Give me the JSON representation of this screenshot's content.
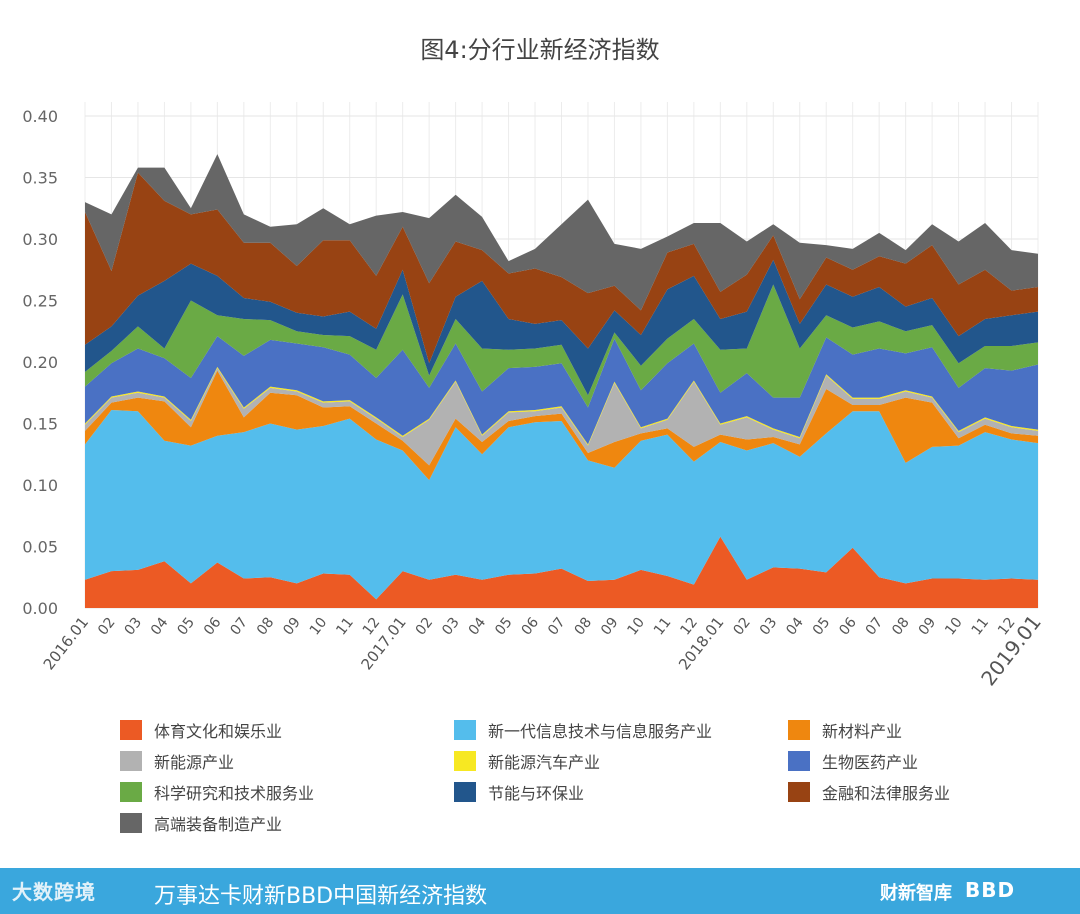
{
  "chart_data": {
    "type": "area",
    "title": "图4:分行业新经济指数",
    "xlabel": "",
    "ylabel": "",
    "ylim": [
      0,
      0.4
    ],
    "yticks": [
      "0.00",
      "0.05",
      "0.10",
      "0.15",
      "0.20",
      "0.25",
      "0.30",
      "0.35",
      "0.40"
    ],
    "grid": true,
    "legend_position": "bottom",
    "categories": [
      "2016.01",
      "02",
      "03",
      "04",
      "05",
      "06",
      "07",
      "08",
      "09",
      "10",
      "11",
      "12",
      "2017.01",
      "02",
      "03",
      "04",
      "05",
      "06",
      "07",
      "08",
      "09",
      "10",
      "11",
      "12",
      "2018.01",
      "02",
      "03",
      "04",
      "05",
      "06",
      "07",
      "08",
      "09",
      "10",
      "11",
      "12",
      "2019.01"
    ],
    "stacked_totals": [
      0.33,
      0.32,
      0.358,
      0.359,
      0.315,
      0.369,
      0.321,
      0.31,
      0.312,
      0.325,
      0.312,
      0.319,
      0.322,
      0.317,
      0.336,
      0.318,
      0.282,
      0.292,
      0.312,
      0.332,
      0.296,
      0.292,
      0.302,
      0.313,
      0.313,
      0.298,
      0.312,
      0.297,
      0.295,
      0.292,
      0.305,
      0.291,
      0.312,
      0.298,
      0.313,
      0.291,
      0.288
    ],
    "series": [
      {
        "name": "体育文化和娱乐业",
        "color": "#ec5a24",
        "values": [
          0.023,
          0.03,
          0.031,
          0.038,
          0.02,
          0.037,
          0.024,
          0.025,
          0.02,
          0.028,
          0.027,
          0.007,
          0.03,
          0.023,
          0.027,
          0.023,
          0.027,
          0.028,
          0.032,
          0.022,
          0.023,
          0.031,
          0.026,
          0.019,
          0.058,
          0.023,
          0.033,
          0.032,
          0.029,
          0.049,
          0.025,
          0.02,
          0.024,
          0.024,
          0.023,
          0.024,
          0.023
        ]
      },
      {
        "name": "新一代信息技术与信息服务产业",
        "color": "#54bdec",
        "values": [
          0.11,
          0.131,
          0.129,
          0.098,
          0.112,
          0.103,
          0.119,
          0.125,
          0.125,
          0.12,
          0.127,
          0.13,
          0.098,
          0.081,
          0.12,
          0.102,
          0.12,
          0.123,
          0.12,
          0.098,
          0.091,
          0.105,
          0.115,
          0.1,
          0.077,
          0.105,
          0.101,
          0.091,
          0.113,
          0.111,
          0.135,
          0.098,
          0.107,
          0.108,
          0.12,
          0.113,
          0.111
        ]
      },
      {
        "name": "新材料产业",
        "color": "#ef870f",
        "values": [
          0.011,
          0.006,
          0.011,
          0.032,
          0.015,
          0.053,
          0.012,
          0.025,
          0.028,
          0.015,
          0.01,
          0.013,
          0.008,
          0.012,
          0.007,
          0.01,
          0.005,
          0.005,
          0.006,
          0.006,
          0.021,
          0.006,
          0.005,
          0.012,
          0.006,
          0.009,
          0.005,
          0.01,
          0.036,
          0.005,
          0.005,
          0.053,
          0.036,
          0.006,
          0.006,
          0.005,
          0.006
        ]
      },
      {
        "name": "新能源产业",
        "color": "#b2b2b2",
        "values": [
          0.005,
          0.004,
          0.004,
          0.003,
          0.005,
          0.002,
          0.007,
          0.004,
          0.003,
          0.004,
          0.004,
          0.004,
          0.003,
          0.037,
          0.03,
          0.005,
          0.007,
          0.004,
          0.005,
          0.006,
          0.048,
          0.004,
          0.007,
          0.053,
          0.008,
          0.018,
          0.006,
          0.005,
          0.011,
          0.005,
          0.005,
          0.005,
          0.004,
          0.005,
          0.005,
          0.005,
          0.004
        ]
      },
      {
        "name": "新能源汽车产业",
        "color": "#f7e822",
        "values": [
          0.001,
          0.001,
          0.001,
          0.001,
          0.001,
          0.001,
          0.001,
          0.001,
          0.001,
          0.001,
          0.001,
          0.001,
          0.001,
          0.001,
          0.001,
          0.001,
          0.001,
          0.001,
          0.001,
          0.001,
          0.001,
          0.001,
          0.001,
          0.001,
          0.001,
          0.001,
          0.001,
          0.001,
          0.001,
          0.001,
          0.001,
          0.001,
          0.001,
          0.001,
          0.001,
          0.001,
          0.001
        ]
      },
      {
        "name": "生物医药产业",
        "color": "#4a71c4",
        "values": [
          0.03,
          0.027,
          0.035,
          0.031,
          0.034,
          0.025,
          0.042,
          0.038,
          0.038,
          0.044,
          0.037,
          0.032,
          0.07,
          0.025,
          0.03,
          0.035,
          0.035,
          0.035,
          0.035,
          0.03,
          0.035,
          0.03,
          0.045,
          0.03,
          0.025,
          0.035,
          0.025,
          0.032,
          0.03,
          0.035,
          0.04,
          0.03,
          0.04,
          0.035,
          0.04,
          0.045,
          0.053
        ]
      },
      {
        "name": "科学研究和技术服务业",
        "color": "#6aaa45",
        "values": [
          0.012,
          0.01,
          0.018,
          0.008,
          0.063,
          0.017,
          0.03,
          0.016,
          0.01,
          0.01,
          0.015,
          0.023,
          0.045,
          0.01,
          0.02,
          0.035,
          0.015,
          0.015,
          0.015,
          0.01,
          0.005,
          0.02,
          0.02,
          0.02,
          0.035,
          0.02,
          0.092,
          0.04,
          0.018,
          0.022,
          0.022,
          0.018,
          0.018,
          0.02,
          0.018,
          0.02,
          0.018
        ]
      },
      {
        "name": "节能与环保业",
        "color": "#22568c",
        "values": [
          0.022,
          0.02,
          0.025,
          0.055,
          0.03,
          0.032,
          0.017,
          0.015,
          0.015,
          0.015,
          0.02,
          0.017,
          0.02,
          0.01,
          0.018,
          0.055,
          0.025,
          0.02,
          0.02,
          0.038,
          0.018,
          0.025,
          0.04,
          0.035,
          0.025,
          0.03,
          0.02,
          0.02,
          0.025,
          0.025,
          0.028,
          0.02,
          0.022,
          0.022,
          0.022,
          0.025,
          0.025
        ]
      },
      {
        "name": "金融和法律服务业",
        "color": "#984313",
        "values": [
          0.108,
          0.045,
          0.1,
          0.065,
          0.04,
          0.054,
          0.045,
          0.048,
          0.038,
          0.062,
          0.058,
          0.043,
          0.035,
          0.065,
          0.045,
          0.025,
          0.037,
          0.045,
          0.035,
          0.045,
          0.02,
          0.02,
          0.03,
          0.026,
          0.022,
          0.03,
          0.02,
          0.02,
          0.022,
          0.022,
          0.025,
          0.035,
          0.043,
          0.042,
          0.04,
          0.02,
          0.02
        ]
      },
      {
        "name": "高端装备制造产业",
        "color": "#666666",
        "values": [
          0.008,
          0.046,
          0.004,
          0.027,
          0.005,
          0.045,
          0.023,
          0.013,
          0.034,
          0.026,
          0.013,
          0.049,
          0.012,
          0.053,
          0.038,
          0.027,
          0.01,
          0.016,
          0.043,
          0.076,
          0.034,
          0.05,
          0.013,
          0.017,
          0.056,
          0.027,
          0.009,
          0.046,
          0.01,
          0.017,
          0.019,
          0.011,
          0.017,
          0.035,
          0.038,
          0.033,
          0.027
        ]
      }
    ]
  },
  "footer": {
    "watermark": "大数跨境",
    "title": "万事达卡财新BBD中国新经济指数",
    "logo_caixin": "财新智库",
    "logo_bbd": "BBD"
  }
}
